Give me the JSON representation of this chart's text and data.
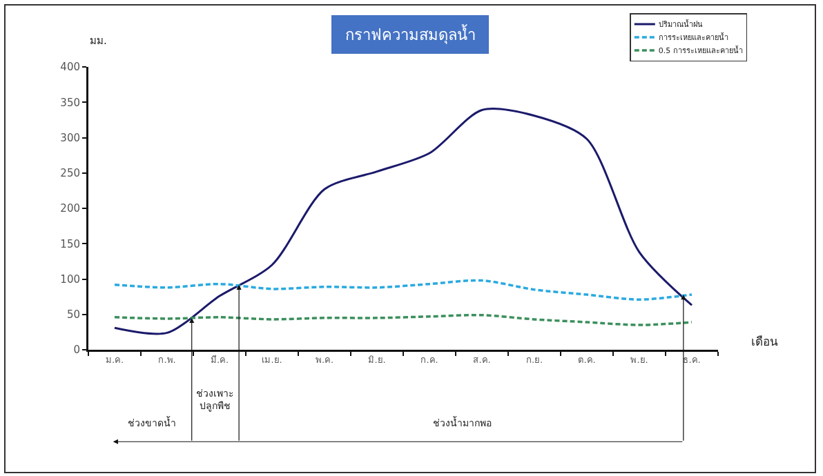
{
  "chart_data": {
    "type": "line",
    "title": "กราฟความสมดุลน้ำ",
    "ylabel": "มม.",
    "xlabel": "เดือน",
    "categories": [
      "ม.ค.",
      "ก.พ.",
      "มี.ค.",
      "เม.ย.",
      "พ.ค.",
      "มิ.ย.",
      "ก.ค.",
      "ส.ค.",
      "ก.ย.",
      "ต.ค.",
      "พ.ย.",
      "ธ.ค."
    ],
    "series": [
      {
        "name": "ปริมาณน้ำฝน",
        "color": "#1b1a6b",
        "line_style": "solid",
        "values": [
          31,
          24,
          76,
          120,
          227,
          252,
          278,
          339,
          331,
          298,
          138,
          63
        ]
      },
      {
        "name": "การระเหยและคายน้ำ",
        "color": "#2aa9e0",
        "line_style": "dashed",
        "values": [
          92,
          88,
          93,
          86,
          89,
          88,
          93,
          98,
          85,
          78,
          71,
          78
        ]
      },
      {
        "name": "0.5 การระเหยและคายน้ำ",
        "color": "#3b8f5c",
        "line_style": "dashed",
        "values": [
          46,
          44,
          46,
          43,
          45,
          45,
          47,
          49,
          43,
          39,
          35,
          39
        ]
      }
    ],
    "ylim": [
      0,
      400
    ],
    "yticks": [
      0,
      50,
      100,
      150,
      200,
      250,
      300,
      350,
      400
    ],
    "grid": false,
    "legend": "top right",
    "marker": "none",
    "annotations": [
      "ช่วงขาดน้ำ",
      "ช่วงเพาะ\nปลูกพืช",
      "ช่วงน้ำมากพอ"
    ]
  }
}
